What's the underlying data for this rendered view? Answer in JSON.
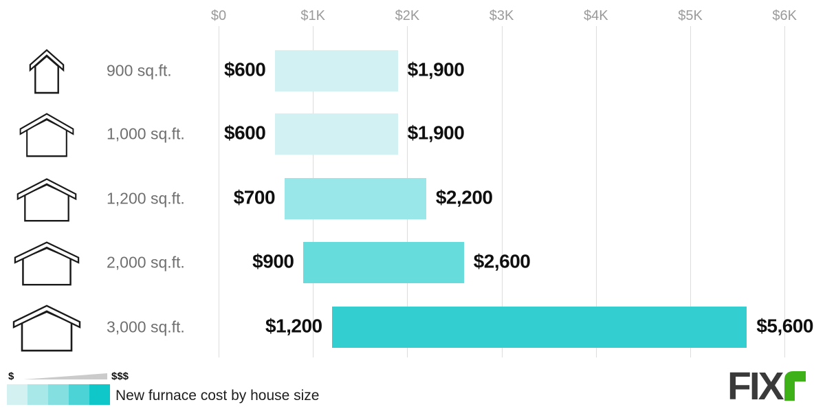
{
  "chart_data": {
    "type": "bar",
    "subtype": "horizontal-range-bars",
    "title": "New furnace cost by house size",
    "x_axis": {
      "ticks": [
        "$0",
        "$1K",
        "$2K",
        "$3K",
        "$4K",
        "$5K",
        "$6K"
      ],
      "min": 0,
      "max": 6000,
      "grid": true
    },
    "rows": [
      {
        "label": "900 sq.ft.",
        "min": 600,
        "max": 1900,
        "min_label": "$600",
        "max_label": "$1,900",
        "color": "#d2f1f3",
        "icon": {
          "style": "tall",
          "width": 52,
          "height": 68
        }
      },
      {
        "label": "1,000 sq.ft.",
        "min": 600,
        "max": 1900,
        "min_label": "$600",
        "max_label": "$1,900",
        "color": "#d2f1f3",
        "icon": {
          "style": "wide",
          "width": 80,
          "height": 68
        }
      },
      {
        "label": "1,200 sq.ft.",
        "min": 700,
        "max": 2200,
        "min_label": "$700",
        "max_label": "$2,200",
        "color": "#99e7e8",
        "icon": {
          "style": "wide",
          "width": 88,
          "height": 67
        }
      },
      {
        "label": "2,000 sq.ft.",
        "min": 900,
        "max": 2600,
        "min_label": "$900",
        "max_label": "$2,600",
        "color": "#66dcdd",
        "icon": {
          "style": "wide",
          "width": 96,
          "height": 68
        }
      },
      {
        "label": "3,000 sq.ft.",
        "min": 1200,
        "max": 5600,
        "min_label": "$1,200",
        "max_label": "$5,600",
        "color": "#33cfd0",
        "icon": {
          "style": "wide",
          "width": 100,
          "height": 72
        }
      }
    ],
    "legend_position": "bottom-left"
  },
  "legend": {
    "low": "$",
    "high": "$$$",
    "swatches": [
      "#d4f1f2",
      "#a9e8e9",
      "#83dfe0",
      "#4cd3d5",
      "#0fc6c9"
    ],
    "caption": "New furnace cost by house size"
  },
  "logo": {
    "text": "FIX",
    "accent_letter": "r",
    "text_color": "#3a3a3a",
    "accent_color": "#3db117"
  },
  "colors": {
    "gridline": "#dcdcdc",
    "axis_text": "#9a9a9a",
    "size_label_text": "#6f6f6f",
    "value_text": "#0f0f0f",
    "house_outline": "#1a1a1a",
    "wedge": "#cbcbcb"
  }
}
